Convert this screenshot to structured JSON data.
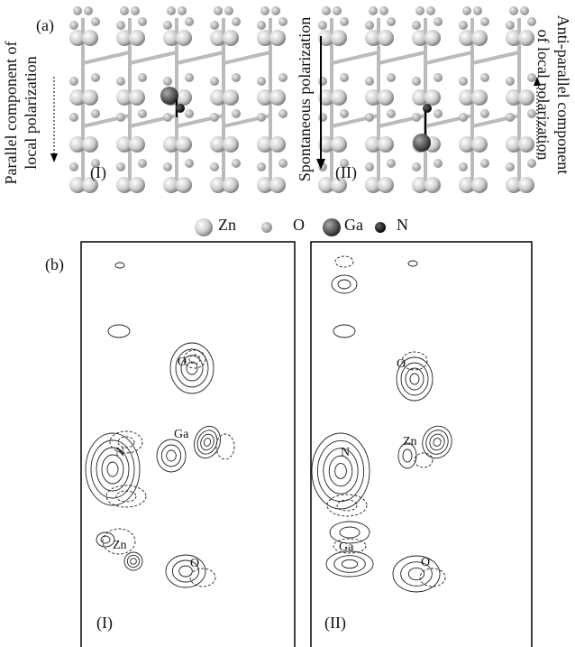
{
  "panel_a": {
    "label": "(a)",
    "left_caption": [
      "Parallel component of",
      "local polarization"
    ],
    "middle_caption": "Spontaneous polarization",
    "right_caption": [
      "Anti-parallel component",
      "of local polarization"
    ],
    "structures": [
      {
        "label": "(I)"
      },
      {
        "label": "(II)"
      }
    ]
  },
  "legend": [
    {
      "symbol": "Zn"
    },
    {
      "symbol": "O"
    },
    {
      "symbol": "Ga"
    },
    {
      "symbol": "N"
    }
  ],
  "panel_b": {
    "label": "(b)",
    "maps": [
      {
        "label": "(I)",
        "atoms": [
          "O",
          "Ga",
          "N",
          "Zn",
          "O"
        ]
      },
      {
        "label": "(II)",
        "atoms": [
          "O",
          "Zn",
          "N",
          "Ga",
          "O"
        ]
      }
    ]
  }
}
